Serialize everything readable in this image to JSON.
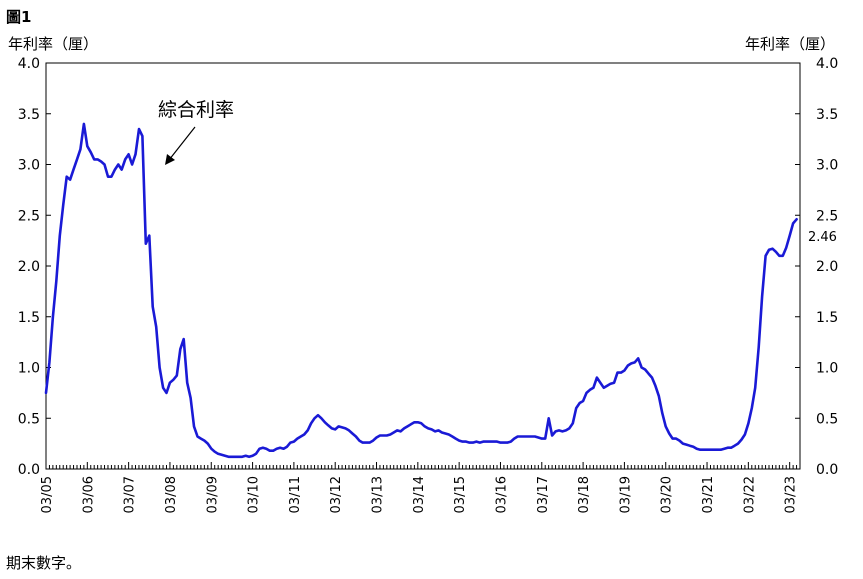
{
  "figure_label": "圖1",
  "footnote": "期末數字。",
  "chart_data": {
    "type": "line",
    "title": "",
    "ylabel_left": "年利率（厘）",
    "ylabel_right": "年利率（厘）",
    "ylim": [
      0,
      4
    ],
    "yticks": [
      "0.0",
      "0.5",
      "1.0",
      "1.5",
      "2.0",
      "2.5",
      "3.0",
      "3.5",
      "4.0"
    ],
    "grid": false,
    "x_ticks": [
      "03/05",
      "03/06",
      "03/07",
      "03/08",
      "03/09",
      "03/10",
      "03/11",
      "03/12",
      "03/13",
      "03/14",
      "03/15",
      "03/16",
      "03/17",
      "03/18",
      "03/19",
      "03/20",
      "03/21",
      "03/22",
      "03/23"
    ],
    "x_range": [
      "2005-03",
      "2023-06"
    ],
    "series": [
      {
        "name": "綜合利率",
        "color": "#1a1ad6",
        "points": [
          [
            "2005-03",
            0.75
          ],
          [
            "2005-04",
            1.05
          ],
          [
            "2005-05",
            1.5
          ],
          [
            "2005-06",
            1.85
          ],
          [
            "2005-07",
            2.3
          ],
          [
            "2005-08",
            2.6
          ],
          [
            "2005-09",
            2.88
          ],
          [
            "2005-10",
            2.85
          ],
          [
            "2005-11",
            2.95
          ],
          [
            "2005-12",
            3.05
          ],
          [
            "2006-01",
            3.15
          ],
          [
            "2006-02",
            3.4
          ],
          [
            "2006-03",
            3.18
          ],
          [
            "2006-04",
            3.12
          ],
          [
            "2006-05",
            3.05
          ],
          [
            "2006-06",
            3.05
          ],
          [
            "2006-07",
            3.03
          ],
          [
            "2006-08",
            3.0
          ],
          [
            "2006-09",
            2.88
          ],
          [
            "2006-10",
            2.88
          ],
          [
            "2006-11",
            2.95
          ],
          [
            "2006-12",
            3.0
          ],
          [
            "2007-01",
            2.95
          ],
          [
            "2007-02",
            3.05
          ],
          [
            "2007-03",
            3.1
          ],
          [
            "2007-04",
            3.0
          ],
          [
            "2007-05",
            3.1
          ],
          [
            "2007-06",
            3.35
          ],
          [
            "2007-07",
            3.28
          ],
          [
            "2007-08",
            2.22
          ],
          [
            "2007-09",
            2.3
          ],
          [
            "2007-10",
            1.6
          ],
          [
            "2007-11",
            1.4
          ],
          [
            "2007-12",
            1.0
          ],
          [
            "2008-01",
            0.8
          ],
          [
            "2008-02",
            0.75
          ],
          [
            "2008-03",
            0.85
          ],
          [
            "2008-04",
            0.88
          ],
          [
            "2008-05",
            0.92
          ],
          [
            "2008-06",
            1.18
          ],
          [
            "2008-07",
            1.28
          ],
          [
            "2008-08",
            0.85
          ],
          [
            "2008-09",
            0.7
          ],
          [
            "2008-10",
            0.42
          ],
          [
            "2008-11",
            0.32
          ],
          [
            "2008-12",
            0.3
          ],
          [
            "2009-01",
            0.28
          ],
          [
            "2009-02",
            0.25
          ],
          [
            "2009-03",
            0.2
          ],
          [
            "2009-04",
            0.17
          ],
          [
            "2009-05",
            0.15
          ],
          [
            "2009-06",
            0.14
          ],
          [
            "2009-07",
            0.13
          ],
          [
            "2009-08",
            0.12
          ],
          [
            "2009-09",
            0.12
          ],
          [
            "2009-10",
            0.12
          ],
          [
            "2009-11",
            0.12
          ],
          [
            "2009-12",
            0.12
          ],
          [
            "2010-01",
            0.13
          ],
          [
            "2010-02",
            0.12
          ],
          [
            "2010-03",
            0.13
          ],
          [
            "2010-04",
            0.15
          ],
          [
            "2010-05",
            0.2
          ],
          [
            "2010-06",
            0.21
          ],
          [
            "2010-07",
            0.2
          ],
          [
            "2010-08",
            0.18
          ],
          [
            "2010-09",
            0.18
          ],
          [
            "2010-10",
            0.2
          ],
          [
            "2010-11",
            0.21
          ],
          [
            "2010-12",
            0.2
          ],
          [
            "2011-01",
            0.22
          ],
          [
            "2011-02",
            0.26
          ],
          [
            "2011-03",
            0.27
          ],
          [
            "2011-04",
            0.3
          ],
          [
            "2011-05",
            0.32
          ],
          [
            "2011-06",
            0.34
          ],
          [
            "2011-07",
            0.38
          ],
          [
            "2011-08",
            0.45
          ],
          [
            "2011-09",
            0.5
          ],
          [
            "2011-10",
            0.53
          ],
          [
            "2011-11",
            0.5
          ],
          [
            "2011-12",
            0.46
          ],
          [
            "2012-01",
            0.43
          ],
          [
            "2012-02",
            0.4
          ],
          [
            "2012-03",
            0.39
          ],
          [
            "2012-04",
            0.42
          ],
          [
            "2012-05",
            0.41
          ],
          [
            "2012-06",
            0.4
          ],
          [
            "2012-07",
            0.38
          ],
          [
            "2012-08",
            0.35
          ],
          [
            "2012-09",
            0.32
          ],
          [
            "2012-10",
            0.28
          ],
          [
            "2012-11",
            0.26
          ],
          [
            "2012-12",
            0.26
          ],
          [
            "2013-01",
            0.26
          ],
          [
            "2013-02",
            0.28
          ],
          [
            "2013-03",
            0.31
          ],
          [
            "2013-04",
            0.33
          ],
          [
            "2013-05",
            0.33
          ],
          [
            "2013-06",
            0.33
          ],
          [
            "2013-07",
            0.34
          ],
          [
            "2013-08",
            0.36
          ],
          [
            "2013-09",
            0.38
          ],
          [
            "2013-10",
            0.37
          ],
          [
            "2013-11",
            0.4
          ],
          [
            "2013-12",
            0.42
          ],
          [
            "2014-01",
            0.44
          ],
          [
            "2014-02",
            0.46
          ],
          [
            "2014-03",
            0.46
          ],
          [
            "2014-04",
            0.45
          ],
          [
            "2014-05",
            0.42
          ],
          [
            "2014-06",
            0.4
          ],
          [
            "2014-07",
            0.39
          ],
          [
            "2014-08",
            0.37
          ],
          [
            "2014-09",
            0.38
          ],
          [
            "2014-10",
            0.36
          ],
          [
            "2014-11",
            0.35
          ],
          [
            "2014-12",
            0.34
          ],
          [
            "2015-01",
            0.32
          ],
          [
            "2015-02",
            0.3
          ],
          [
            "2015-03",
            0.28
          ],
          [
            "2015-04",
            0.27
          ],
          [
            "2015-05",
            0.27
          ],
          [
            "2015-06",
            0.26
          ],
          [
            "2015-07",
            0.26
          ],
          [
            "2015-08",
            0.27
          ],
          [
            "2015-09",
            0.26
          ],
          [
            "2015-10",
            0.27
          ],
          [
            "2015-11",
            0.27
          ],
          [
            "2015-12",
            0.27
          ],
          [
            "2016-01",
            0.27
          ],
          [
            "2016-02",
            0.27
          ],
          [
            "2016-03",
            0.26
          ],
          [
            "2016-04",
            0.26
          ],
          [
            "2016-05",
            0.26
          ],
          [
            "2016-06",
            0.27
          ],
          [
            "2016-07",
            0.3
          ],
          [
            "2016-08",
            0.32
          ],
          [
            "2016-09",
            0.32
          ],
          [
            "2016-10",
            0.32
          ],
          [
            "2016-11",
            0.32
          ],
          [
            "2016-12",
            0.32
          ],
          [
            "2017-01",
            0.32
          ],
          [
            "2017-02",
            0.31
          ],
          [
            "2017-03",
            0.3
          ],
          [
            "2017-04",
            0.3
          ],
          [
            "2017-05",
            0.5
          ],
          [
            "2017-06",
            0.33
          ],
          [
            "2017-07",
            0.37
          ],
          [
            "2017-08",
            0.38
          ],
          [
            "2017-09",
            0.37
          ],
          [
            "2017-10",
            0.38
          ],
          [
            "2017-11",
            0.4
          ],
          [
            "2017-12",
            0.45
          ],
          [
            "2018-01",
            0.6
          ],
          [
            "2018-02",
            0.65
          ],
          [
            "2018-03",
            0.67
          ],
          [
            "2018-04",
            0.75
          ],
          [
            "2018-05",
            0.78
          ],
          [
            "2018-06",
            0.8
          ],
          [
            "2018-07",
            0.9
          ],
          [
            "2018-08",
            0.85
          ],
          [
            "2018-09",
            0.8
          ],
          [
            "2018-10",
            0.82
          ],
          [
            "2018-11",
            0.84
          ],
          [
            "2018-12",
            0.85
          ],
          [
            "2019-01",
            0.95
          ],
          [
            "2019-02",
            0.95
          ],
          [
            "2019-03",
            0.97
          ],
          [
            "2019-04",
            1.02
          ],
          [
            "2019-05",
            1.04
          ],
          [
            "2019-06",
            1.05
          ],
          [
            "2019-07",
            1.09
          ],
          [
            "2019-08",
            1.0
          ],
          [
            "2019-09",
            0.98
          ],
          [
            "2019-10",
            0.94
          ],
          [
            "2019-11",
            0.9
          ],
          [
            "2019-12",
            0.82
          ],
          [
            "2020-01",
            0.72
          ],
          [
            "2020-02",
            0.55
          ],
          [
            "2020-03",
            0.42
          ],
          [
            "2020-04",
            0.35
          ],
          [
            "2020-05",
            0.3
          ],
          [
            "2020-06",
            0.3
          ],
          [
            "2020-07",
            0.28
          ],
          [
            "2020-08",
            0.25
          ],
          [
            "2020-09",
            0.24
          ],
          [
            "2020-10",
            0.23
          ],
          [
            "2020-11",
            0.22
          ],
          [
            "2020-12",
            0.2
          ],
          [
            "2021-01",
            0.19
          ],
          [
            "2021-02",
            0.19
          ],
          [
            "2021-03",
            0.19
          ],
          [
            "2021-04",
            0.19
          ],
          [
            "2021-05",
            0.19
          ],
          [
            "2021-06",
            0.19
          ],
          [
            "2021-07",
            0.19
          ],
          [
            "2021-08",
            0.2
          ],
          [
            "2021-09",
            0.21
          ],
          [
            "2021-10",
            0.21
          ],
          [
            "2021-11",
            0.23
          ],
          [
            "2021-12",
            0.25
          ],
          [
            "2022-01",
            0.29
          ],
          [
            "2022-02",
            0.34
          ],
          [
            "2022-03",
            0.45
          ],
          [
            "2022-04",
            0.6
          ],
          [
            "2022-05",
            0.8
          ],
          [
            "2022-06",
            1.2
          ],
          [
            "2022-07",
            1.7
          ],
          [
            "2022-08",
            2.1
          ],
          [
            "2022-09",
            2.16
          ],
          [
            "2022-10",
            2.17
          ],
          [
            "2022-11",
            2.14
          ],
          [
            "2022-12",
            2.1
          ],
          [
            "2023-01",
            2.1
          ],
          [
            "2023-02",
            2.18
          ],
          [
            "2023-03",
            2.3
          ],
          [
            "2023-04",
            2.42
          ],
          [
            "2023-05",
            2.46
          ]
        ]
      }
    ],
    "annotations": [
      {
        "text": "綜合利率",
        "type": "arrow-label"
      },
      {
        "text": "2.46",
        "type": "end-value-label"
      }
    ]
  }
}
